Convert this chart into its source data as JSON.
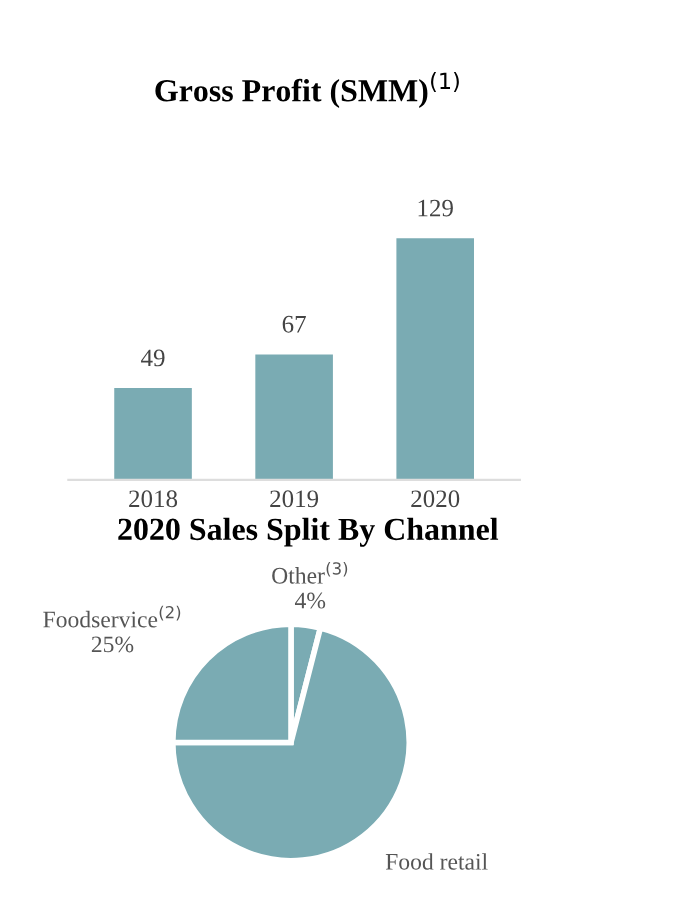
{
  "chart_data": [
    {
      "type": "bar",
      "title": "Gross Profit (SMM)$^{(1)}$",
      "categories": [
        "2018",
        "2019",
        "2020"
      ],
      "values": [
        49,
        67,
        129
      ],
      "color": "#7aabb3",
      "data_labels": true
    },
    {
      "type": "pie",
      "title": "2020 Sales Split By Channel",
      "categories": [
        "Other$^{(3)}$",
        "Food retail",
        "Foodservice$^{(2)}$"
      ],
      "values": [
        4,
        71,
        25
      ],
      "colors": [
        "#7aabb3",
        "#7aabb3",
        "#7aabb3"
      ],
      "value_labels": [
        "4%",
        null,
        "25%"
      ]
    }
  ]
}
